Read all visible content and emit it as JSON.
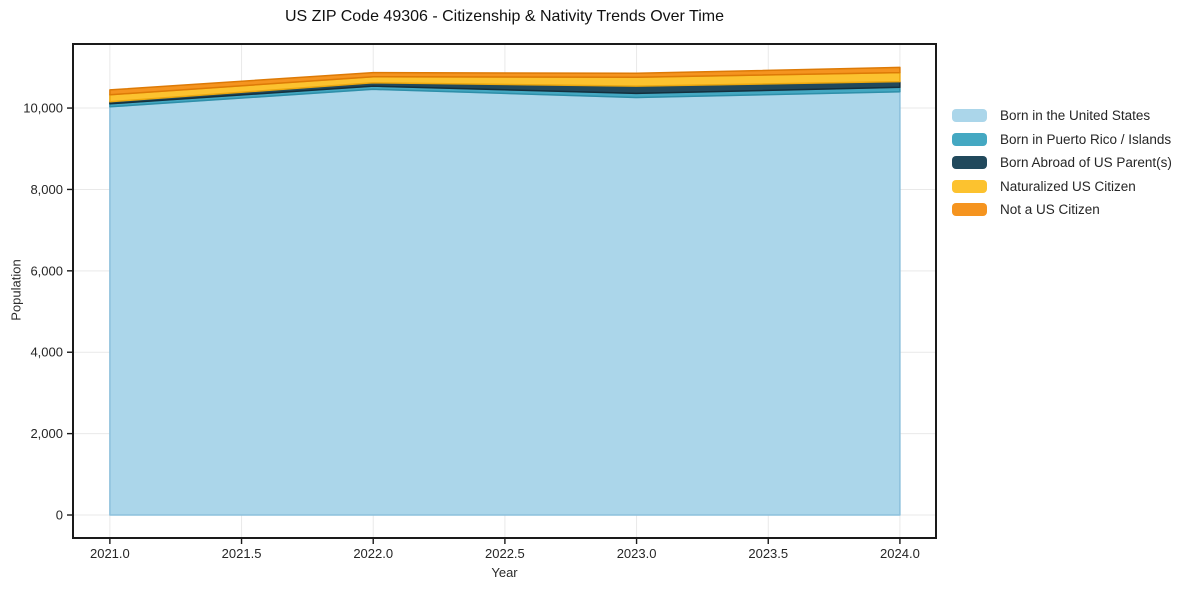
{
  "chart_data": {
    "type": "area",
    "stacked": true,
    "title": "US ZIP Code 49306 - Citizenship & Nativity Trends Over Time",
    "xlabel": "Year",
    "ylabel": "Population",
    "grid": true,
    "legend_position": "right-outside",
    "x": [
      2021,
      2022,
      2023,
      2024
    ],
    "xlim": [
      2020.86,
      2024.137
    ],
    "ylim": [
      -565,
      11574
    ],
    "x_tick_values": [
      2021.0,
      2021.5,
      2022.0,
      2022.5,
      2023.0,
      2023.5,
      2024.0
    ],
    "x_tick_labels": [
      "2021.0",
      "2021.5",
      "2022.0",
      "2022.5",
      "2023.0",
      "2023.5",
      "2024.0"
    ],
    "y_tick_values": [
      0,
      2000,
      4000,
      6000,
      8000,
      10000
    ],
    "y_tick_labels": [
      "0",
      "2,000",
      "4,000",
      "6,000",
      "8,000",
      "10,000"
    ],
    "series": [
      {
        "name": "Born in the United States",
        "color": "#ABD6EA",
        "edge": "#8CC0DC",
        "values": [
          10030,
          10460,
          10260,
          10400
        ]
      },
      {
        "name": "Born in Puerto Rico / Islands",
        "color": "#44A8C2",
        "edge": "#2E8FA9",
        "values": [
          75,
          80,
          100,
          110
        ]
      },
      {
        "name": "Born Abroad of US Parent(s)",
        "color": "#21495C",
        "edge": "#132F3D",
        "values": [
          50,
          80,
          180,
          140
        ]
      },
      {
        "name": "Naturalized US Citizen",
        "color": "#FCC22F",
        "edge": "#EBA70F",
        "values": [
          170,
          150,
          215,
          220
        ]
      },
      {
        "name": "Not a US Citizen",
        "color": "#F5941F",
        "edge": "#DD7A06",
        "values": [
          120,
          100,
          100,
          130
        ]
      }
    ],
    "stacked_totals": [
      10445,
      10870,
      10855,
      11000
    ],
    "colors": {
      "grid": "#e9e9e9",
      "frame": "#1a1a1a",
      "tick_text": "#262626"
    }
  }
}
